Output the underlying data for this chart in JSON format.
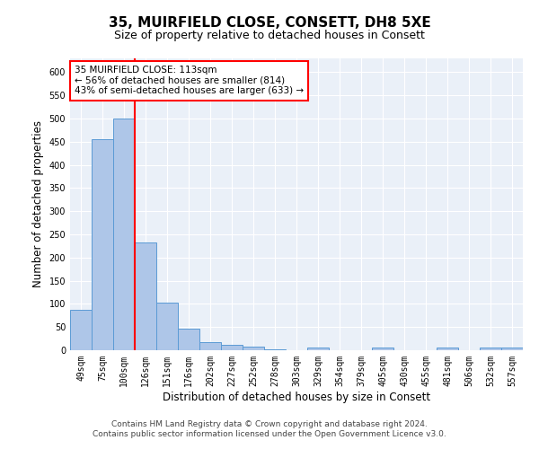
{
  "title": "35, MUIRFIELD CLOSE, CONSETT, DH8 5XE",
  "subtitle": "Size of property relative to detached houses in Consett",
  "xlabel": "Distribution of detached houses by size in Consett",
  "ylabel": "Number of detached properties",
  "footer_line1": "Contains HM Land Registry data © Crown copyright and database right 2024.",
  "footer_line2": "Contains public sector information licensed under the Open Government Licence v3.0.",
  "categories": [
    "49sqm",
    "75sqm",
    "100sqm",
    "126sqm",
    "151sqm",
    "176sqm",
    "202sqm",
    "227sqm",
    "252sqm",
    "278sqm",
    "303sqm",
    "329sqm",
    "354sqm",
    "379sqm",
    "405sqm",
    "430sqm",
    "455sqm",
    "481sqm",
    "506sqm",
    "532sqm",
    "557sqm"
  ],
  "values": [
    88,
    455,
    500,
    233,
    103,
    47,
    18,
    12,
    8,
    1,
    0,
    5,
    0,
    0,
    5,
    0,
    0,
    5,
    0,
    5,
    5
  ],
  "bar_color": "#aec6e8",
  "bar_edge_color": "#5b9bd5",
  "red_line_x": 2.5,
  "annotation_text": "35 MUIRFIELD CLOSE: 113sqm\n← 56% of detached houses are smaller (814)\n43% of semi-detached houses are larger (633) →",
  "annotation_box_color": "white",
  "annotation_box_edge_color": "red",
  "red_line_color": "red",
  "ylim": [
    0,
    630
  ],
  "yticks": [
    0,
    50,
    100,
    150,
    200,
    250,
    300,
    350,
    400,
    450,
    500,
    550,
    600
  ],
  "bg_color": "#eaf0f8",
  "title_fontsize": 11,
  "subtitle_fontsize": 9,
  "axis_label_fontsize": 8.5,
  "tick_fontsize": 7,
  "annotation_fontsize": 7.5,
  "footer_fontsize": 6.5
}
